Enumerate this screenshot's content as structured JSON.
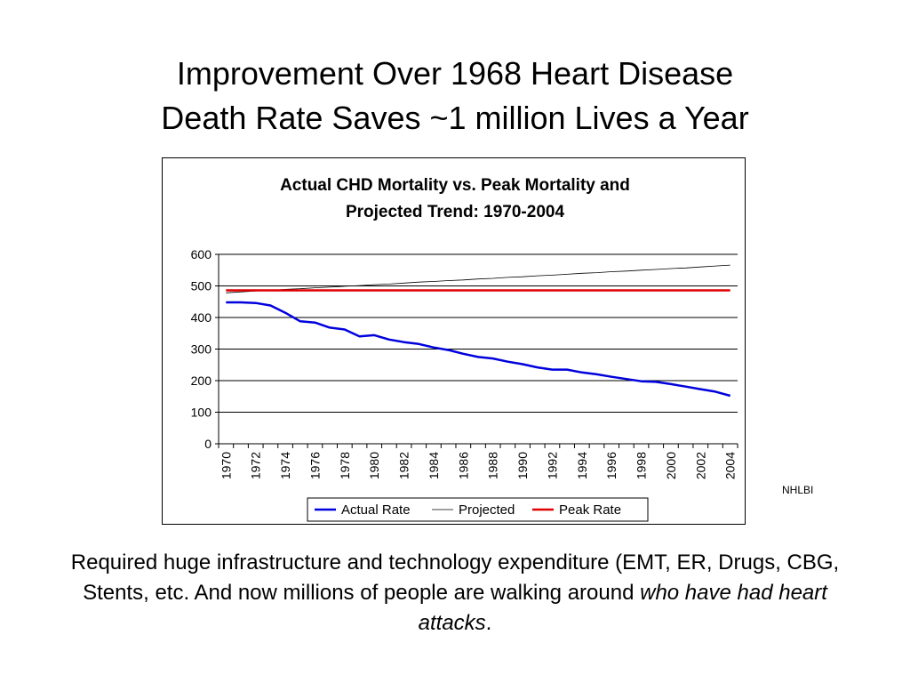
{
  "slide": {
    "title_line1": "Improvement Over 1968 Heart Disease",
    "title_line2": "Death Rate Saves ~1 million Lives a Year",
    "source": "NHLBI",
    "caption_part1": "Required huge infrastructure and technology expenditure (EMT, ER, Drugs, CBG, Stents, etc.  And now millions of people are walking around ",
    "caption_emphasis": "who have had heart attacks",
    "caption_end": "."
  },
  "chart_data": {
    "type": "line",
    "title_line1": "Actual CHD Mortality vs. Peak Mortality and",
    "title_line2": "Projected Trend: 1970-2004",
    "xlabel": "",
    "ylabel": "",
    "ylim": [
      0,
      600
    ],
    "yticks": [
      0,
      100,
      200,
      300,
      400,
      500,
      600
    ],
    "x": [
      1970,
      1971,
      1972,
      1973,
      1974,
      1975,
      1976,
      1977,
      1978,
      1979,
      1980,
      1981,
      1982,
      1983,
      1984,
      1985,
      1986,
      1987,
      1988,
      1989,
      1990,
      1991,
      1992,
      1993,
      1994,
      1995,
      1996,
      1997,
      1998,
      1999,
      2000,
      2001,
      2002,
      2003,
      2004
    ],
    "xtick_labels": [
      "1970",
      "1972",
      "1974",
      "1976",
      "1978",
      "1980",
      "1982",
      "1984",
      "1986",
      "1988",
      "1990",
      "1992",
      "1994",
      "1996",
      "1998",
      "2000",
      "2002",
      "2004"
    ],
    "grid": "horizontal",
    "legend_position": "bottom",
    "series": [
      {
        "name": "Actual Rate",
        "color": "#0000dd",
        "width": 2.5,
        "values": [
          448,
          448,
          446,
          438,
          415,
          388,
          384,
          368,
          362,
          340,
          344,
          330,
          322,
          316,
          305,
          297,
          285,
          275,
          270,
          260,
          252,
          242,
          235,
          235,
          226,
          220,
          212,
          205,
          198,
          196,
          189,
          181,
          173,
          165,
          152
        ]
      },
      {
        "name": "Projected",
        "color": "#000000",
        "width": 0.8,
        "values": [
          478,
          481,
          484,
          486,
          489,
          491,
          494,
          496,
          499,
          501,
          504,
          506,
          509,
          512,
          514,
          517,
          519,
          522,
          524,
          527,
          529,
          532,
          534,
          537,
          540,
          542,
          545,
          547,
          550,
          552,
          555,
          557,
          560,
          563,
          566
        ]
      },
      {
        "name": "Peak Rate",
        "color": "#e00000",
        "width": 2.5,
        "values": [
          486,
          486,
          486,
          486,
          486,
          486,
          486,
          486,
          486,
          486,
          486,
          486,
          486,
          486,
          486,
          486,
          486,
          486,
          486,
          486,
          486,
          486,
          486,
          486,
          486,
          486,
          486,
          486,
          486,
          486,
          486,
          486,
          486,
          486,
          486
        ]
      }
    ]
  }
}
